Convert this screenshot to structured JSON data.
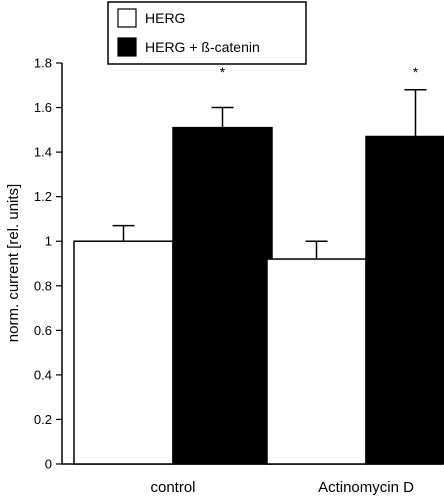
{
  "chart_data": {
    "type": "bar",
    "categories": [
      "control",
      "Actinomycin D"
    ],
    "series": [
      {
        "name": "HERG",
        "color": "#ffffff",
        "values": [
          1.0,
          0.92
        ],
        "errors": [
          0.07,
          0.08
        ],
        "annotations": [
          "",
          ""
        ]
      },
      {
        "name": "HERG + ß-catenin",
        "color": "#000000",
        "values": [
          1.51,
          1.47
        ],
        "errors": [
          0.09,
          0.21
        ],
        "annotations": [
          "*",
          "*"
        ]
      }
    ],
    "ylabel": "norm. current [rel. units]",
    "ylim": [
      0,
      1.8
    ],
    "yticks": [
      "0",
      "0.2",
      "0.4",
      "0.6",
      "0.8",
      "1",
      "1.2",
      "1.4",
      "1.6",
      "1.8"
    ],
    "legend_position": "top",
    "grid": false
  }
}
